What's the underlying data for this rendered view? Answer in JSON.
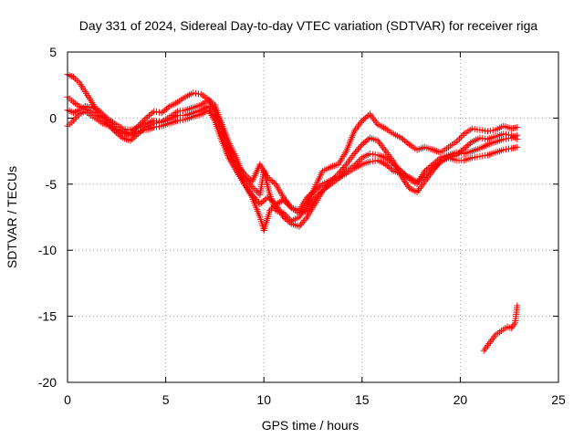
{
  "chart_data": {
    "type": "scatter",
    "title": "Day 331 of 2024, Sidereal Day-to-day VTEC variation (SDTVAR) for receiver riga",
    "xlabel": "GPS time / hours",
    "ylabel": "SDTVAR / TECUs",
    "xlim": [
      0,
      25
    ],
    "ylim": [
      -20,
      5
    ],
    "xticks": [
      0,
      5,
      10,
      15,
      20,
      25
    ],
    "yticks": [
      5,
      0,
      -5,
      -10,
      -15,
      -20
    ],
    "grid": true,
    "marker": "+",
    "color": "#ff0000",
    "series": [
      {
        "name": "track-1",
        "points": [
          [
            0.0,
            3.3
          ],
          [
            0.3,
            3.1
          ],
          [
            0.6,
            2.7
          ],
          [
            0.9,
            2.0
          ],
          [
            1.2,
            1.3
          ],
          [
            1.5,
            0.5
          ],
          [
            1.8,
            0.2
          ],
          [
            2.1,
            -0.2
          ],
          [
            2.4,
            -0.8
          ],
          [
            2.8,
            -1.2
          ],
          [
            3.2,
            -1.2
          ],
          [
            3.6,
            -0.6
          ],
          [
            4.0,
            0.0
          ],
          [
            4.4,
            0.5
          ],
          [
            4.8,
            0.4
          ],
          [
            5.2,
            0.9
          ],
          [
            5.6,
            1.2
          ],
          [
            6.0,
            1.6
          ],
          [
            6.4,
            1.9
          ],
          [
            6.8,
            1.8
          ],
          [
            7.2,
            1.4
          ],
          [
            7.5,
            1.0
          ],
          [
            7.8,
            -0.2
          ],
          [
            8.2,
            -1.8
          ],
          [
            8.6,
            -3.0
          ],
          [
            9.0,
            -4.5
          ],
          [
            9.4,
            -5.2
          ],
          [
            9.8,
            -5.8
          ],
          [
            10.0,
            -4.0
          ],
          [
            10.3,
            -5.8
          ],
          [
            10.6,
            -7.0
          ],
          [
            11.0,
            -7.2
          ],
          [
            11.4,
            -7.8
          ],
          [
            11.8,
            -7.5
          ],
          [
            12.2,
            -6.5
          ],
          [
            12.6,
            -5.2
          ],
          [
            13.0,
            -4.0
          ],
          [
            13.4,
            -3.7
          ],
          [
            13.8,
            -3.5
          ],
          [
            14.2,
            -2.5
          ],
          [
            14.6,
            -1.0
          ],
          [
            15.0,
            -0.2
          ],
          [
            15.4,
            0.3
          ],
          [
            15.8,
            -0.5
          ],
          [
            16.2,
            -0.8
          ],
          [
            16.6,
            -1.2
          ],
          [
            17.0,
            -1.5
          ],
          [
            17.4,
            -2.0
          ],
          [
            17.8,
            -2.4
          ],
          [
            18.2,
            -2.2
          ],
          [
            18.6,
            -2.4
          ],
          [
            19.0,
            -2.6
          ],
          [
            19.4,
            -2.2
          ],
          [
            19.8,
            -1.8
          ],
          [
            20.2,
            -1.2
          ],
          [
            20.6,
            -0.8
          ],
          [
            21.0,
            -0.9
          ],
          [
            21.4,
            -1.0
          ],
          [
            21.8,
            -0.9
          ],
          [
            22.2,
            -0.6
          ],
          [
            22.6,
            -0.8
          ],
          [
            22.9,
            -0.7
          ]
        ]
      },
      {
        "name": "track-2",
        "points": [
          [
            0.0,
            1.6
          ],
          [
            0.3,
            1.2
          ],
          [
            0.6,
            0.9
          ],
          [
            0.9,
            0.7
          ],
          [
            1.2,
            0.5
          ],
          [
            1.5,
            0.2
          ],
          [
            1.8,
            0.0
          ],
          [
            2.1,
            -0.5
          ],
          [
            2.4,
            -1.0
          ],
          [
            2.8,
            -1.5
          ],
          [
            3.2,
            -1.7
          ],
          [
            3.6,
            -1.2
          ],
          [
            4.0,
            -0.7
          ],
          [
            4.4,
            -0.4
          ],
          [
            4.8,
            -0.3
          ],
          [
            5.2,
            0.1
          ],
          [
            5.6,
            0.5
          ],
          [
            6.0,
            0.6
          ],
          [
            6.4,
            0.8
          ],
          [
            6.8,
            1.0
          ],
          [
            7.2,
            1.4
          ],
          [
            7.5,
            0.6
          ],
          [
            7.8,
            -1.0
          ],
          [
            8.2,
            -2.6
          ],
          [
            8.6,
            -3.8
          ],
          [
            9.0,
            -5.0
          ],
          [
            9.4,
            -5.8
          ],
          [
            9.8,
            -6.5
          ],
          [
            10.2,
            -6.0
          ],
          [
            10.6,
            -6.5
          ],
          [
            11.0,
            -7.5
          ],
          [
            11.4,
            -8.0
          ],
          [
            11.8,
            -8.2
          ],
          [
            12.2,
            -7.5
          ],
          [
            12.6,
            -6.5
          ],
          [
            13.0,
            -5.5
          ],
          [
            13.4,
            -4.8
          ],
          [
            13.8,
            -4.2
          ],
          [
            14.2,
            -3.5
          ],
          [
            14.6,
            -2.7
          ],
          [
            15.0,
            -2.0
          ],
          [
            15.4,
            -1.5
          ],
          [
            15.8,
            -1.7
          ],
          [
            16.2,
            -2.5
          ],
          [
            16.6,
            -3.3
          ],
          [
            17.0,
            -4.4
          ],
          [
            17.4,
            -5.3
          ],
          [
            17.8,
            -5.6
          ],
          [
            18.2,
            -4.8
          ],
          [
            18.6,
            -4.0
          ],
          [
            19.0,
            -3.3
          ],
          [
            19.4,
            -3.0
          ],
          [
            19.8,
            -2.8
          ],
          [
            20.2,
            -2.3
          ],
          [
            20.6,
            -1.8
          ],
          [
            21.0,
            -1.5
          ],
          [
            21.4,
            -1.6
          ],
          [
            21.8,
            -1.4
          ],
          [
            22.2,
            -1.2
          ],
          [
            22.6,
            -1.3
          ],
          [
            22.9,
            -1.6
          ]
        ]
      },
      {
        "name": "track-3",
        "points": [
          [
            0.0,
            0.6
          ],
          [
            0.3,
            0.4
          ],
          [
            0.6,
            0.6
          ],
          [
            0.9,
            0.9
          ],
          [
            1.2,
            0.8
          ],
          [
            1.5,
            0.7
          ],
          [
            1.8,
            0.3
          ],
          [
            2.1,
            -0.1
          ],
          [
            2.4,
            -0.4
          ],
          [
            2.8,
            -0.8
          ],
          [
            3.2,
            -0.9
          ],
          [
            3.6,
            -0.7
          ],
          [
            4.0,
            -0.4
          ],
          [
            4.4,
            -0.2
          ],
          [
            4.8,
            -0.3
          ],
          [
            5.2,
            -0.1
          ],
          [
            5.6,
            0.2
          ],
          [
            6.0,
            0.2
          ],
          [
            6.4,
            0.4
          ],
          [
            6.8,
            0.6
          ],
          [
            7.2,
            0.9
          ],
          [
            7.5,
            0.3
          ],
          [
            7.8,
            -0.5
          ],
          [
            8.2,
            -2.2
          ],
          [
            8.6,
            -3.5
          ],
          [
            9.0,
            -4.2
          ],
          [
            9.4,
            -4.8
          ],
          [
            9.8,
            -3.5
          ],
          [
            10.2,
            -4.5
          ],
          [
            10.6,
            -5.0
          ],
          [
            11.0,
            -6.0
          ],
          [
            11.4,
            -6.8
          ],
          [
            11.8,
            -7.0
          ],
          [
            12.2,
            -6.0
          ],
          [
            12.6,
            -5.5
          ],
          [
            13.0,
            -5.0
          ],
          [
            13.4,
            -4.7
          ],
          [
            13.8,
            -4.5
          ],
          [
            14.2,
            -4.2
          ],
          [
            14.6,
            -3.8
          ],
          [
            15.0,
            -3.5
          ],
          [
            15.4,
            -3.3
          ],
          [
            15.8,
            -3.2
          ],
          [
            16.2,
            -3.5
          ],
          [
            16.6,
            -4.0
          ],
          [
            17.0,
            -4.2
          ],
          [
            17.4,
            -4.5
          ],
          [
            17.8,
            -4.8
          ],
          [
            18.2,
            -4.4
          ],
          [
            18.6,
            -3.8
          ],
          [
            19.0,
            -3.3
          ],
          [
            19.4,
            -3.0
          ],
          [
            19.8,
            -3.2
          ],
          [
            20.2,
            -3.2
          ],
          [
            20.6,
            -3.0
          ],
          [
            21.0,
            -2.9
          ],
          [
            21.4,
            -2.8
          ],
          [
            21.8,
            -2.6
          ],
          [
            22.2,
            -2.4
          ],
          [
            22.6,
            -2.3
          ],
          [
            22.9,
            -2.2
          ]
        ]
      },
      {
        "name": "track-4",
        "points": [
          [
            0.0,
            -0.6
          ],
          [
            0.3,
            -0.2
          ],
          [
            0.6,
            0.3
          ],
          [
            0.9,
            0.5
          ],
          [
            1.2,
            0.2
          ],
          [
            1.5,
            -0.1
          ],
          [
            1.8,
            -0.4
          ],
          [
            2.1,
            -0.6
          ],
          [
            2.4,
            -0.8
          ],
          [
            2.8,
            -1.0
          ],
          [
            3.2,
            -1.3
          ],
          [
            3.6,
            -1.0
          ],
          [
            4.0,
            -0.9
          ],
          [
            4.4,
            -0.7
          ],
          [
            4.8,
            -0.6
          ],
          [
            5.2,
            -0.4
          ],
          [
            5.6,
            -0.2
          ],
          [
            6.0,
            -0.1
          ],
          [
            6.4,
            0.1
          ],
          [
            6.8,
            0.3
          ],
          [
            7.2,
            0.6
          ],
          [
            7.5,
            -0.2
          ],
          [
            7.8,
            -1.5
          ],
          [
            8.2,
            -3.0
          ],
          [
            8.6,
            -4.0
          ],
          [
            9.0,
            -5.0
          ],
          [
            9.4,
            -6.0
          ],
          [
            9.8,
            -7.5
          ],
          [
            10.0,
            -8.5
          ],
          [
            10.3,
            -7.0
          ],
          [
            10.6,
            -6.5
          ],
          [
            11.0,
            -6.2
          ],
          [
            11.4,
            -6.8
          ],
          [
            11.8,
            -7.2
          ],
          [
            12.2,
            -7.0
          ],
          [
            12.6,
            -6.0
          ],
          [
            13.0,
            -5.5
          ],
          [
            13.4,
            -5.0
          ],
          [
            13.8,
            -4.6
          ],
          [
            14.2,
            -4.0
          ],
          [
            14.6,
            -3.6
          ],
          [
            15.0,
            -3.0
          ],
          [
            15.4,
            -2.7
          ],
          [
            15.8,
            -2.8
          ],
          [
            16.2,
            -3.0
          ],
          [
            16.6,
            -3.5
          ],
          [
            17.0,
            -4.0
          ],
          [
            17.4,
            -4.6
          ],
          [
            17.8,
            -5.0
          ],
          [
            18.2,
            -4.0
          ],
          [
            18.6,
            -3.5
          ],
          [
            19.0,
            -3.0
          ],
          [
            19.4,
            -2.8
          ],
          [
            19.8,
            -2.6
          ],
          [
            20.2,
            -2.7
          ],
          [
            20.6,
            -2.5
          ],
          [
            21.0,
            -2.3
          ],
          [
            21.4,
            -2.0
          ],
          [
            21.8,
            -1.8
          ],
          [
            22.2,
            -1.6
          ],
          [
            22.6,
            -1.5
          ],
          [
            22.9,
            -1.3
          ]
        ]
      },
      {
        "name": "track-5",
        "points": [
          [
            21.2,
            -17.6
          ],
          [
            21.4,
            -17.2
          ],
          [
            21.6,
            -16.8
          ],
          [
            21.8,
            -16.4
          ],
          [
            22.0,
            -16.2
          ],
          [
            22.2,
            -16.0
          ],
          [
            22.4,
            -15.8
          ],
          [
            22.6,
            -15.9
          ],
          [
            22.8,
            -15.5
          ],
          [
            22.9,
            -14.2
          ]
        ]
      }
    ]
  }
}
